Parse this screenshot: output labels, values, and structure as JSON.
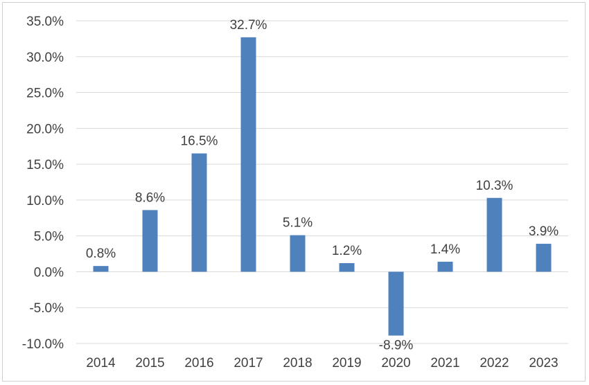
{
  "chart_data": {
    "type": "bar",
    "categories": [
      "2014",
      "2015",
      "2016",
      "2017",
      "2018",
      "2019",
      "2020",
      "2021",
      "2022",
      "2023"
    ],
    "values": [
      0.8,
      8.6,
      16.5,
      32.7,
      5.1,
      1.2,
      -8.9,
      1.4,
      10.3,
      3.9
    ],
    "data_labels": [
      "0.8%",
      "8.6%",
      "16.5%",
      "32.7%",
      "5.1%",
      "1.2%",
      "-8.9%",
      "1.4%",
      "10.3%",
      "3.9%"
    ],
    "y_ticks": [
      35,
      30,
      25,
      20,
      15,
      10,
      5,
      0,
      -5,
      -10
    ],
    "y_tick_labels": [
      "35.0%",
      "30.0%",
      "25.0%",
      "20.0%",
      "15.0%",
      "10.0%",
      "5.0%",
      "0.0%",
      "-5.0%",
      "-10.0%"
    ],
    "ylim": [
      -10,
      35
    ],
    "grid": true,
    "legend": "none",
    "bar_color": "#4f81bd",
    "title": "",
    "xlabel": "",
    "ylabel": ""
  }
}
